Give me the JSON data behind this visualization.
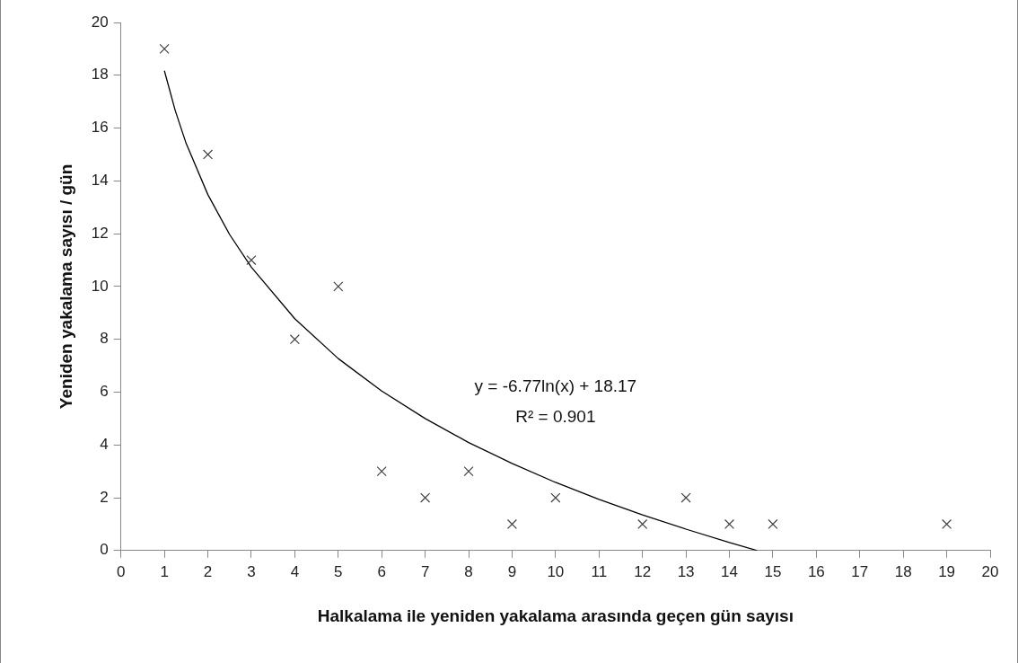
{
  "chart_data": {
    "type": "scatter",
    "xlabel": "Halkalama ile yeniden yakalama arasında geçen gün sayısı",
    "ylabel": "Yeniden yakalama sayısı / gün",
    "x": [
      1,
      2,
      3,
      4,
      5,
      6,
      7,
      8,
      9,
      10,
      12,
      13,
      14,
      15,
      19
    ],
    "series": [
      {
        "color": "#404040",
        "marker": "cross",
        "values": [
          19,
          15,
          11,
          8,
          10,
          3,
          2,
          3,
          1,
          2,
          1,
          2,
          1,
          1,
          1
        ]
      },
      {
        "type": "line",
        "color": "#000000",
        "marker": "none",
        "x": [
          1,
          1.25,
          1.5,
          2,
          2.5,
          3,
          4,
          5,
          6,
          7,
          8,
          9,
          10,
          11,
          12,
          13,
          14,
          14.64
        ],
        "values": [
          18.17,
          16.66,
          15.42,
          13.48,
          11.97,
          10.73,
          8.78,
          7.27,
          6.04,
          5.0,
          4.09,
          3.3,
          2.58,
          1.94,
          1.35,
          0.81,
          0.3,
          0
        ]
      }
    ],
    "annotations": [
      "y = -6.77ln(x) + 18.17",
      "R² = 0.901"
    ],
    "xlim": [
      0,
      20
    ],
    "xticks": [
      0,
      1,
      2,
      3,
      4,
      5,
      6,
      7,
      8,
      9,
      10,
      11,
      12,
      13,
      14,
      15,
      16,
      17,
      18,
      19,
      20
    ],
    "ylim": [
      0,
      20
    ],
    "yticks": [
      0,
      2,
      4,
      6,
      8,
      10,
      12,
      14,
      16,
      18,
      20
    ],
    "grid": false,
    "legend": false
  }
}
